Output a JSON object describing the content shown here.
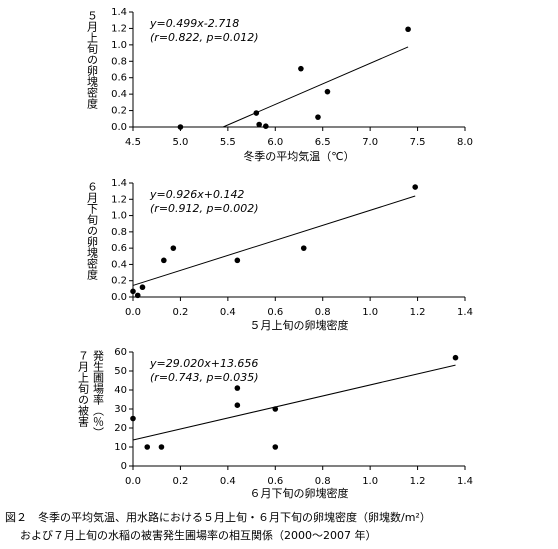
{
  "chart_data": [
    {
      "type": "scatter",
      "color": "#000000",
      "x": [
        5.0,
        5.8,
        5.83,
        5.9,
        6.27,
        6.45,
        6.55,
        7.4
      ],
      "values": [
        0.0,
        0.17,
        0.03,
        0.01,
        0.71,
        0.12,
        0.43,
        1.19
      ],
      "xlim": [
        4.5,
        8.0
      ],
      "ylim": [
        0,
        1.4
      ],
      "xticks": [
        {
          "value": 4.5,
          "label": "4.5"
        },
        {
          "value": 5,
          "label": "5.0"
        },
        {
          "value": 5.5,
          "label": "5.5"
        },
        {
          "value": 6,
          "label": "6.0"
        },
        {
          "value": 6.5,
          "label": "6.5"
        },
        {
          "value": 7,
          "label": "7.0"
        },
        {
          "value": 7.5,
          "label": "7.5"
        },
        {
          "value": 8,
          "label": "8.0"
        }
      ],
      "yticks": [
        {
          "value": 0,
          "label": "0.0"
        },
        {
          "value": 0.2,
          "label": "0.2"
        },
        {
          "value": 0.4,
          "label": "0.4"
        },
        {
          "value": 0.6,
          "label": "0.6"
        },
        {
          "value": 0.8,
          "label": "0.8"
        },
        {
          "value": 1,
          "label": "1.0"
        },
        {
          "value": 1.2,
          "label": "1.2"
        },
        {
          "value": 1.4,
          "label": "1.4"
        }
      ],
      "xlabel": "冬季の平均気温（℃）",
      "ylabel": [
        "５月上旬の卵塊密度"
      ],
      "annotations": [
        "y=0.499x-2.718",
        "(r=0.822, p=0.012)"
      ],
      "fit": {
        "x": [
          5.45,
          7.4
        ],
        "y": [
          0,
          0.975
        ]
      }
    },
    {
      "type": "scatter",
      "color": "#000000",
      "x": [
        0,
        0.02,
        0.04,
        0.13,
        0.17,
        0.44,
        0.72,
        1.19
      ],
      "values": [
        0.07,
        0.02,
        0.12,
        0.45,
        0.6,
        0.45,
        0.6,
        1.35
      ],
      "xlim": [
        0,
        1.4
      ],
      "ylim": [
        0,
        1.4
      ],
      "xticks": [
        {
          "value": 0,
          "label": "0.0"
        },
        {
          "value": 0.2,
          "label": "0.2"
        },
        {
          "value": 0.4,
          "label": "0.4"
        },
        {
          "value": 0.6,
          "label": "0.6"
        },
        {
          "value": 0.8,
          "label": "0.8"
        },
        {
          "value": 1,
          "label": "1.0"
        },
        {
          "value": 1.2,
          "label": "1.2"
        },
        {
          "value": 1.4,
          "label": "1.4"
        }
      ],
      "yticks": [
        {
          "value": 0,
          "label": "0.0"
        },
        {
          "value": 0.2,
          "label": "0.2"
        },
        {
          "value": 0.4,
          "label": "0.4"
        },
        {
          "value": 0.6,
          "label": "0.6"
        },
        {
          "value": 0.8,
          "label": "0.8"
        },
        {
          "value": 1,
          "label": "1.0"
        },
        {
          "value": 1.2,
          "label": "1.2"
        },
        {
          "value": 1.4,
          "label": "1.4"
        }
      ],
      "xlabel": "５月上旬の卵塊密度",
      "ylabel": [
        "６月下旬の卵塊密度"
      ],
      "annotations": [
        "y=0.926x+0.142",
        "(r=0.912, p=0.002)"
      ],
      "fit": {
        "x": [
          0,
          1.19
        ],
        "y": [
          0.142,
          1.24
        ]
      }
    },
    {
      "type": "scatter",
      "color": "#000000",
      "x": [
        0,
        0.06,
        0.12,
        0.44,
        0.44,
        0.6,
        0.6,
        1.36
      ],
      "values": [
        25,
        10,
        10,
        41,
        32,
        30,
        10,
        57
      ],
      "xlim": [
        0,
        1.4
      ],
      "ylim": [
        0,
        60
      ],
      "xticks": [
        {
          "value": 0,
          "label": "0.0"
        },
        {
          "value": 0.2,
          "label": "0.2"
        },
        {
          "value": 0.4,
          "label": "0.4"
        },
        {
          "value": 0.6,
          "label": "0.6"
        },
        {
          "value": 0.8,
          "label": "0.8"
        },
        {
          "value": 1,
          "label": "1.0"
        },
        {
          "value": 1.2,
          "label": "1.2"
        },
        {
          "value": 1.4,
          "label": "1.4"
        }
      ],
      "yticks": [
        0,
        10,
        20,
        30,
        40,
        50,
        60
      ],
      "xlabel": "６月下旬の卵塊密度",
      "ylabel": [
        "７月上旬の被害",
        "発生圃場率（％）"
      ],
      "annotations": [
        "y=29.020x+13.656",
        "(r=0.743, p=0.035)"
      ],
      "fit": {
        "x": [
          0,
          1.36
        ],
        "y": [
          13.66,
          53.1
        ]
      }
    }
  ],
  "caption": [
    "図２　冬季の平均気温、用水路における５月上旬・６月下旬の卵塊密度（卵塊数/m²）",
    "および７月上旬の水稲の被害発生圃場率の相互関係（2000～2007 年）"
  ]
}
